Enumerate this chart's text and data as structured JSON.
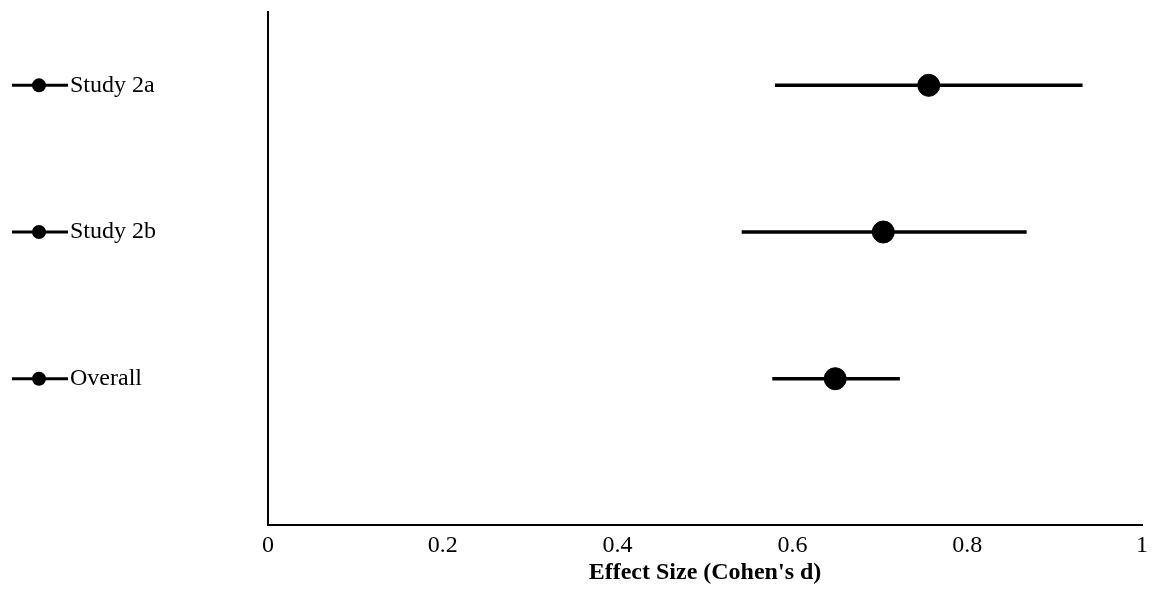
{
  "chart_data": {
    "type": "scatter",
    "orientation": "horizontal",
    "xlabel": "Effect Size (Cohen's d)",
    "categories": [
      null,
      null,
      null
    ],
    "xlim": [
      0,
      1
    ],
    "xticks": [
      0,
      0.2,
      0.4,
      0.6,
      0.8,
      1
    ],
    "series": [
      {
        "name": "Study 2a",
        "color": "#000000",
        "values": [
          0.756,
          null,
          null
        ],
        "errors": [
          [
            0.58,
            0.932
          ],
          null,
          null
        ]
      },
      {
        "name": "Study 2b",
        "color": "#000000",
        "values": [
          null,
          0.704,
          null
        ],
        "errors": [
          null,
          [
            0.542,
            0.868
          ],
          null
        ]
      },
      {
        "name": "Overall",
        "color": "#000000",
        "values": [
          null,
          null,
          0.649
        ],
        "errors": [
          null,
          null,
          [
            0.577,
            0.723
          ]
        ]
      }
    ],
    "marker": "circle",
    "grid": false,
    "legend": "left"
  }
}
